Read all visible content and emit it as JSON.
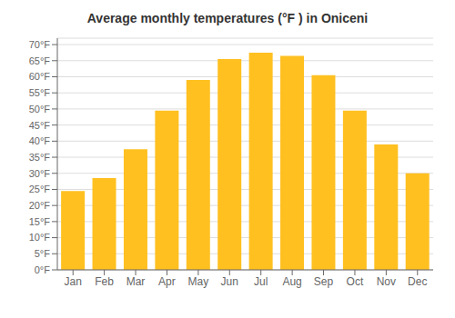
{
  "chart_data": {
    "type": "bar",
    "title": "Average monthly temperatures (°F ) in Oniceni",
    "categories": [
      "Jan",
      "Feb",
      "Mar",
      "Apr",
      "May",
      "Jun",
      "Jul",
      "Aug",
      "Sep",
      "Oct",
      "Nov",
      "Dec"
    ],
    "values": [
      24.5,
      28.5,
      37.5,
      49.5,
      59.0,
      65.5,
      67.5,
      66.5,
      60.5,
      49.5,
      39.0,
      30.0
    ],
    "color": "#FFC020",
    "ylim": [
      0,
      72
    ],
    "yticks": [
      {
        "value": 0,
        "label": "0°F"
      },
      {
        "value": 5,
        "label": "5°F"
      },
      {
        "value": 10,
        "label": "10°F"
      },
      {
        "value": 15,
        "label": "15°F"
      },
      {
        "value": 20,
        "label": "20°F"
      },
      {
        "value": 25,
        "label": "25°F"
      },
      {
        "value": 30,
        "label": "30°F"
      },
      {
        "value": 35,
        "label": "35°F"
      },
      {
        "value": 40,
        "label": "40°F"
      },
      {
        "value": 45,
        "label": "45°F"
      },
      {
        "value": 50,
        "label": "50°F"
      },
      {
        "value": 55,
        "label": "55°F"
      },
      {
        "value": 60,
        "label": "60°F"
      },
      {
        "value": 65,
        "label": "65°F"
      },
      {
        "value": 70,
        "label": "70°F"
      }
    ],
    "grid": true
  }
}
